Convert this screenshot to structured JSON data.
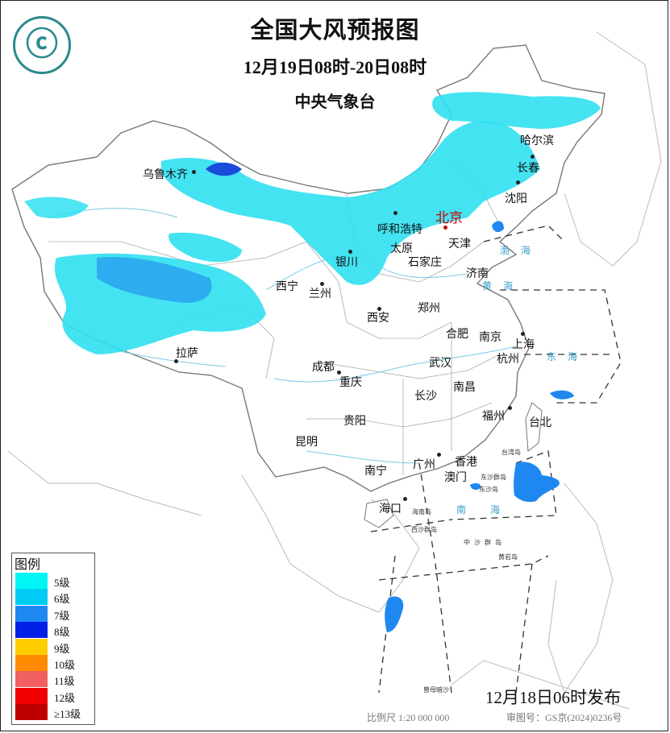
{
  "header": {
    "title": "全国大风预报图",
    "period": "12月19日08时-20日08时",
    "agency": "中央气象台"
  },
  "cities": [
    {
      "name": "乌鲁木齐",
      "capital": false
    },
    {
      "name": "哈尔滨",
      "capital": false
    },
    {
      "name": "长春",
      "capital": false
    },
    {
      "name": "沈阳",
      "capital": false
    },
    {
      "name": "北京",
      "capital": true
    },
    {
      "name": "呼和浩特",
      "capital": false
    },
    {
      "name": "天津",
      "capital": false
    },
    {
      "name": "太原",
      "capital": false
    },
    {
      "name": "石家庄",
      "capital": false
    },
    {
      "name": "银川",
      "capital": false
    },
    {
      "name": "济南",
      "capital": false
    },
    {
      "name": "西宁",
      "capital": false
    },
    {
      "name": "兰州",
      "capital": false
    },
    {
      "name": "郑州",
      "capital": false
    },
    {
      "name": "西安",
      "capital": false
    },
    {
      "name": "合肥",
      "capital": false
    },
    {
      "name": "南京",
      "capital": false
    },
    {
      "name": "上海",
      "capital": false
    },
    {
      "name": "杭州",
      "capital": false
    },
    {
      "name": "拉萨",
      "capital": false
    },
    {
      "name": "成都",
      "capital": false
    },
    {
      "name": "武汉",
      "capital": false
    },
    {
      "name": "重庆",
      "capital": false
    },
    {
      "name": "南昌",
      "capital": false
    },
    {
      "name": "长沙",
      "capital": false
    },
    {
      "name": "福州",
      "capital": false
    },
    {
      "name": "台北",
      "capital": false
    },
    {
      "name": "贵阳",
      "capital": false
    },
    {
      "name": "昆明",
      "capital": false
    },
    {
      "name": "南宁",
      "capital": false
    },
    {
      "name": "广州",
      "capital": false
    },
    {
      "name": "香港",
      "capital": false
    },
    {
      "name": "澳门",
      "capital": false
    },
    {
      "name": "海口",
      "capital": false
    }
  ],
  "places": [
    "东沙群岛",
    "东沙岛",
    "海南岛",
    "西沙群岛",
    "中沙群岛",
    "黄岩岛",
    "曾母暗沙",
    "台湾岛"
  ],
  "seas": [
    "渤海",
    "黄海",
    "东海",
    "南海"
  ],
  "colors": {
    "capital": "#cc0000",
    "border": "#888888",
    "province": "#aaaaaa"
  },
  "legend": {
    "title": "图例",
    "items": [
      {
        "label": "5级",
        "color": "#00f5f5"
      },
      {
        "label": "6级",
        "color": "#00ccf5"
      },
      {
        "label": "7级",
        "color": "#1e88f0"
      },
      {
        "label": "8级",
        "color": "#0020e8"
      },
      {
        "label": "9级",
        "color": "#ffcc00"
      },
      {
        "label": "10级",
        "color": "#ff8c00"
      },
      {
        "label": "11级",
        "color": "#f06060"
      },
      {
        "label": "12级",
        "color": "#f00000"
      },
      {
        "label": "≥13级",
        "color": "#c00000"
      }
    ]
  },
  "wind_areas": [
    {
      "region": "新疆北部",
      "level": "6级"
    },
    {
      "region": "内蒙古-华北-东北",
      "level": "6级"
    },
    {
      "region": "青藏高原",
      "level": "6级"
    },
    {
      "region": "台湾海峡",
      "level": "7级"
    },
    {
      "region": "南海东北部",
      "level": "7级"
    },
    {
      "region": "南海南部",
      "level": "7级"
    }
  ],
  "footer": {
    "issued": "12月18日06时发布",
    "scale": "比例尺 1:20 000 000",
    "approval": "审图号：GS京(2024)0236号"
  }
}
